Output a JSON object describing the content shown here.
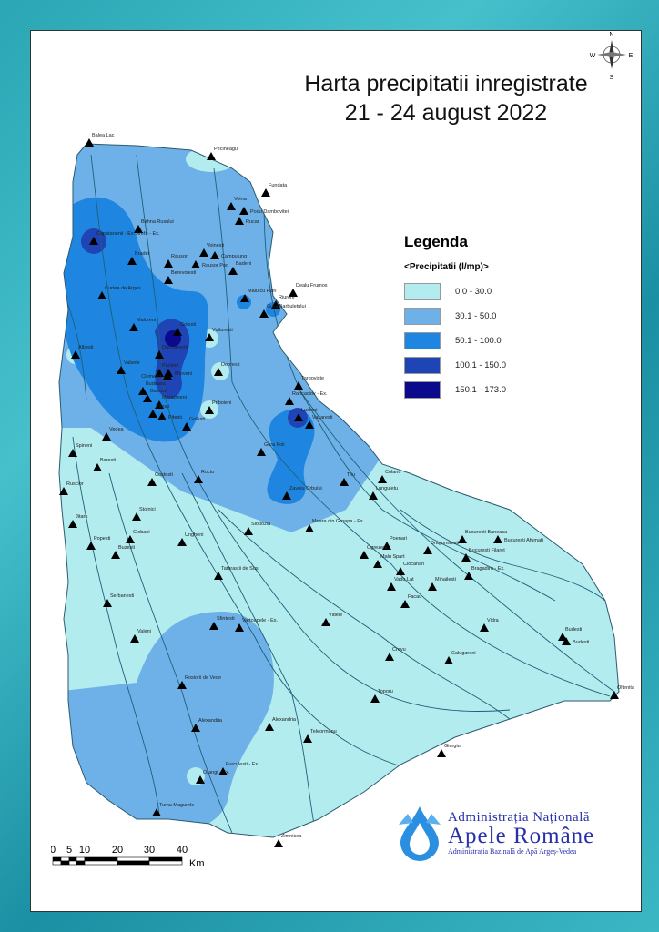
{
  "title": {
    "line1": "Harta precipitatii inregistrate",
    "line2": "21 - 24 august 2022"
  },
  "legend": {
    "heading": "Legenda",
    "field": "<Precipitatii (l/mp)>",
    "classes": [
      {
        "label": "0.0 - 30.0",
        "color": "#b3ecee"
      },
      {
        "label": "30.1 - 50.0",
        "color": "#6eb1e8"
      },
      {
        "label": "50.1 - 100.0",
        "color": "#1e86e0"
      },
      {
        "label": "100.1 - 150.0",
        "color": "#1f44b6"
      },
      {
        "label": "150.1 - 173.0",
        "color": "#0b0a8c"
      }
    ]
  },
  "compass": {
    "n": "N",
    "s": "S",
    "e": "E",
    "w": "W"
  },
  "scale_bar": {
    "ticks": [
      "0",
      "5",
      "10",
      "20",
      "30",
      "40"
    ],
    "unit": "Km"
  },
  "logo": {
    "line1": "Administrația Națională",
    "line2": "Apele Române",
    "line3": "Administrația Bazinală de Apă Argeș-Vedea"
  },
  "stations": [
    "Balea Lac",
    "Pecineagu",
    "Fundata",
    "Voina",
    "Podu Dambovitei",
    "Rucar",
    "Bahna Rusului",
    "Capatanenii - Ex. Arefu - Ex.",
    "Bradet",
    "Rausor",
    "Voinesti",
    "Campulung",
    "Rausor Pod",
    "Berevoiesti",
    "Badeni",
    "Dealu Frumos",
    "Malu cu Flori",
    "Riureni",
    "Gura Barbuletului",
    "Curtea de Arges",
    "Malureni",
    "Golesti",
    "Darmanesti",
    "Vulturesti",
    "Albesti",
    "Valsele",
    "Pacleni",
    "Mioveni",
    "Clementi",
    "Budeasa",
    "Bascov",
    "Maracineni",
    "Pitesti",
    "Pitesti",
    "Dobresti",
    "Priboieni",
    "Golesti",
    "Targoviste",
    "Rancaciov - Ex.",
    "Lucieni",
    "Vacaresti",
    "Gura Foii",
    "Zavoiu Orbului",
    "Titu",
    "Colanu",
    "Lunguletu",
    "Vedea",
    "Spineni",
    "Baresti",
    "Ruscior",
    "Costesti",
    "Rociu",
    "Jitaru",
    "Stolnici",
    "Ciobani",
    "Buzesti",
    "Popesti",
    "Ungheni",
    "Slobozia",
    "Moara din Groapa - Ex.",
    "Tatarastii de Sus",
    "Serbanesti",
    "Valeni",
    "Videle",
    "Sfintesti",
    "Vartoapele - Ex.",
    "Rosiorii de Vede",
    "Alexandria",
    "Alexandria",
    "Teleormanu",
    "Orangi - Ex.",
    "Furculesti - Ex.",
    "Tumu Magurele",
    "Zimnicea",
    "Toporu",
    "Giurgiu",
    "Crovu",
    "Calugareni",
    "Vidra",
    "Facau",
    "Vadu Lat",
    "Mihailesti",
    "Bragadiru - Ex.",
    "Bucuresti Filaret",
    "Bucuresti Baneasa",
    "Bucuresti Afumati",
    "Dragomiresti",
    "Poenari",
    "Ogrezeni",
    "Malu Spart",
    "Ciocanari",
    "Budesti",
    "Budesti",
    "Oltenita"
  ]
}
